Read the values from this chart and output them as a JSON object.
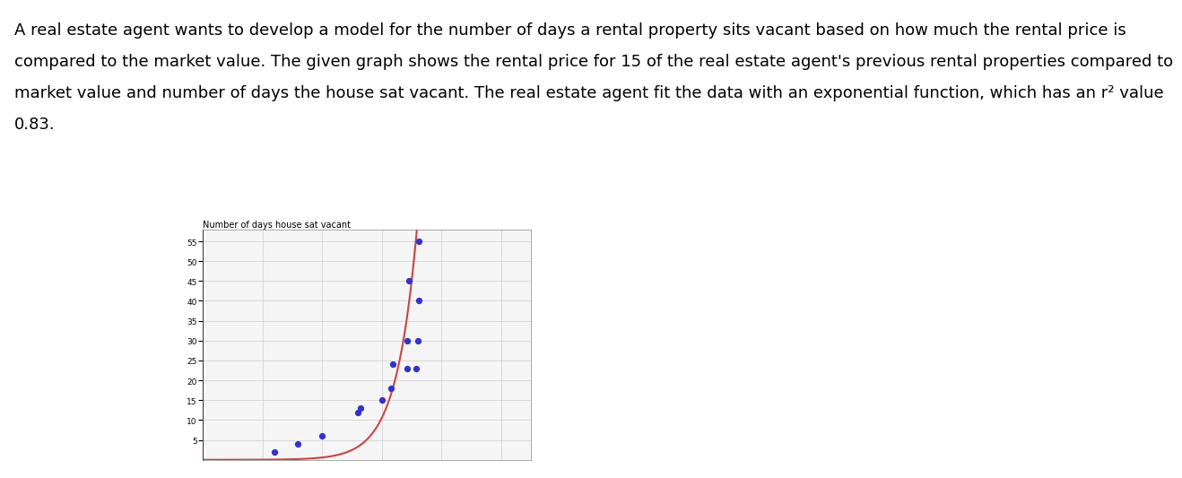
{
  "scatter_x": [
    -1.8,
    -1.4,
    -1.0,
    -0.4,
    -0.35,
    0.0,
    0.15,
    0.18,
    0.42,
    0.42,
    0.45,
    0.58,
    0.6,
    0.62,
    0.62
  ],
  "scatter_y": [
    2,
    4,
    6,
    12,
    13,
    15,
    18,
    24,
    23,
    30,
    45,
    23,
    30,
    40,
    55
  ],
  "scatter_color": "#3333cc",
  "scatter_size": 18,
  "curve_color": "#cc4444",
  "curve_linewidth": 1.5,
  "exp_a": 10.5,
  "exp_b": 2.9,
  "ylim": [
    0,
    58
  ],
  "xlim": [
    -3.0,
    2.5
  ],
  "yticks": [
    5,
    10,
    15,
    20,
    25,
    30,
    35,
    40,
    45,
    50,
    55
  ],
  "grid_color": "#cccccc",
  "grid_linewidth": 0.5,
  "background_color": "#ffffff",
  "plot_bg_color": "#f5f5f5",
  "axis_title": "Number of days house sat vacant",
  "title_fontsize": 7,
  "tick_fontsize": 6.5,
  "figure_width": 12.0,
  "figure_height": 5.14,
  "intro_lines": [
    "A real estate agent wants to develop a model for the number of days a rental property sits vacant based on how much the rental price is",
    "compared to the market value. The given graph shows the rental price for 15 of the real estate agent's previous rental properties compared to",
    "market value and number of days the house sat vacant. The real estate agent fit the data with an exponential function, which has an r² value",
    "0.83."
  ],
  "text_fontsize": 13,
  "text_color": "#000000"
}
